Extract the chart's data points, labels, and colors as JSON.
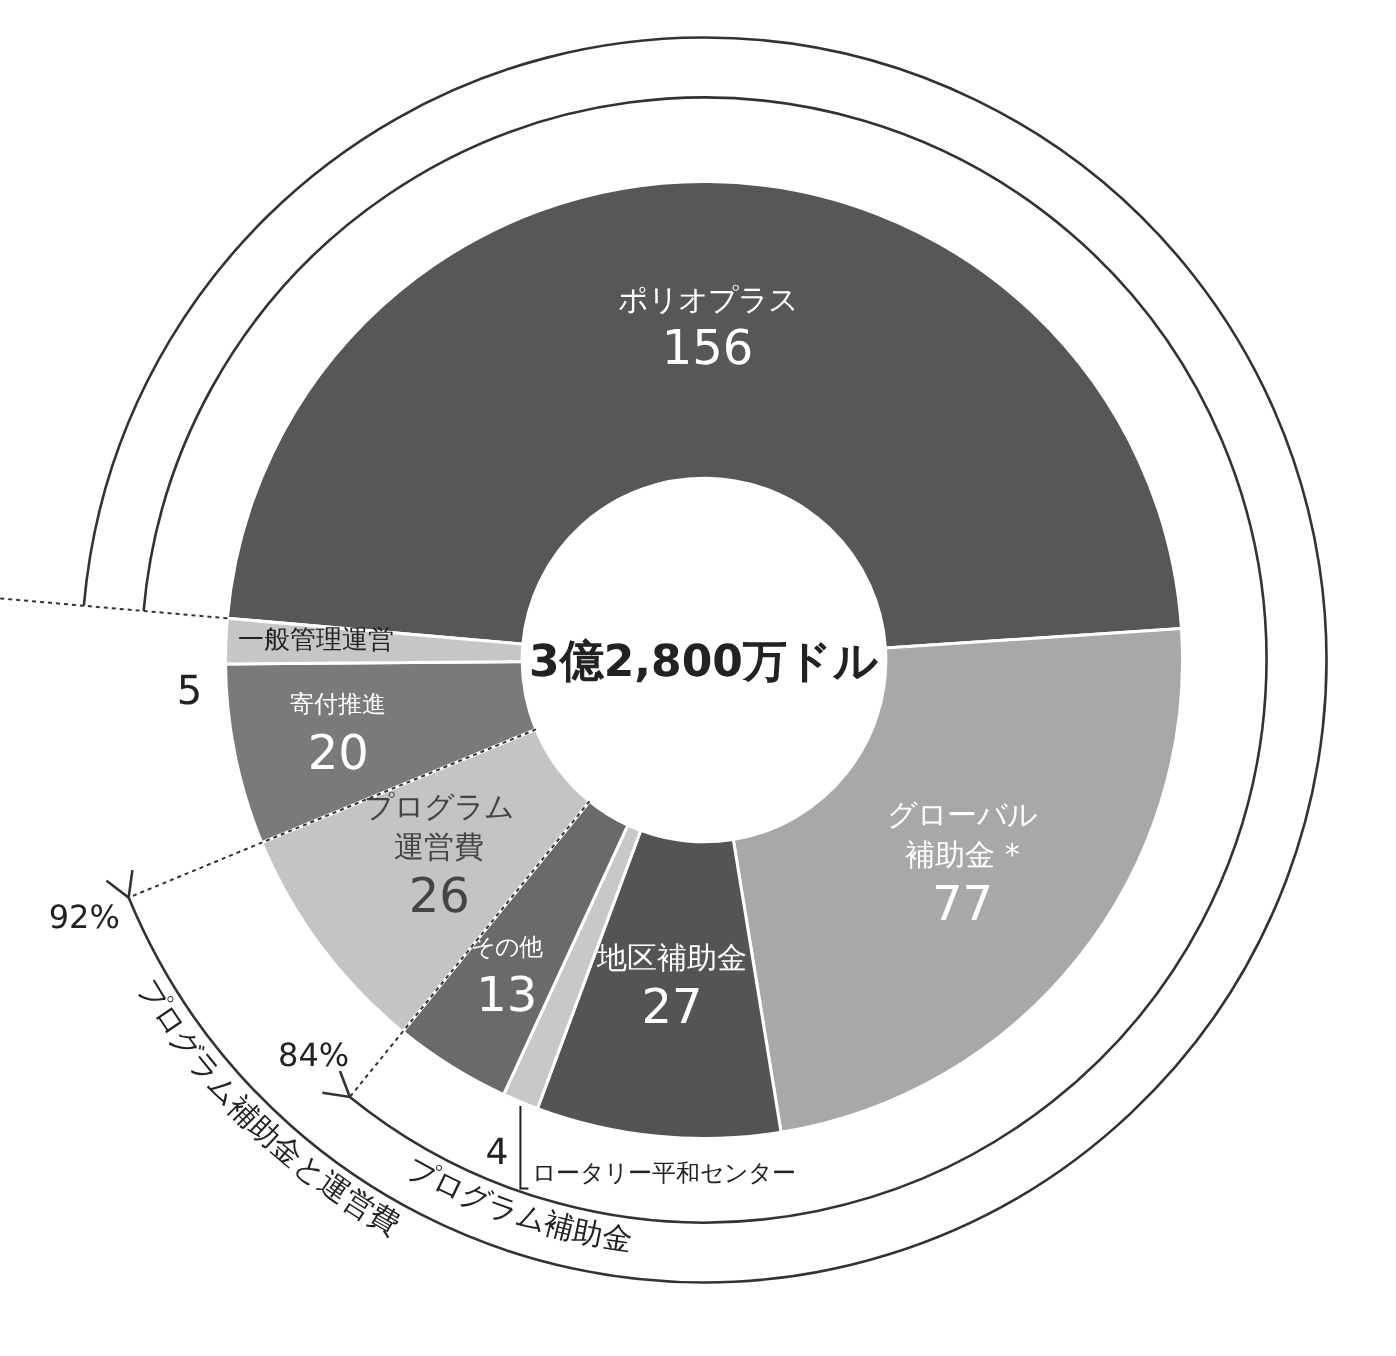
{
  "chart_data": {
    "type": "donut",
    "categories": [
      "ポリオプラス",
      "グローバル補助金 *",
      "地区補助金",
      "ロータリー平和センター",
      "その他",
      "プログラム運営費",
      "寄付推進",
      "一般管理運営"
    ],
    "values": [
      156,
      77,
      27,
      4,
      13,
      26,
      20,
      5
    ],
    "colors": [
      "#575757",
      "#a8a8a8",
      "#545454",
      "#c8c8c8",
      "#6a6a6a",
      "#c4c4c4",
      "#7a7a7a",
      "#c6c6c6"
    ],
    "data_labels": true,
    "annotations": [
      "3億2,800万ドル",
      "92%",
      "84%",
      "プログラム補助金",
      "プログラム補助金と運営費"
    ]
  }
}
